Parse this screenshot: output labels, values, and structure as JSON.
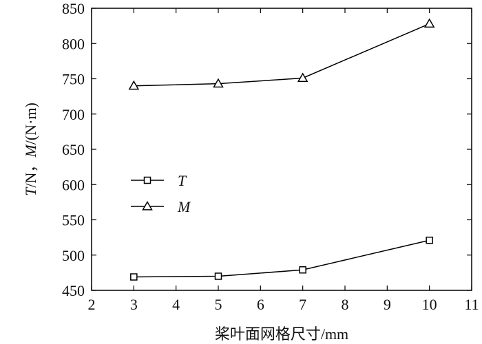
{
  "chart_data": {
    "type": "line",
    "title": "",
    "xlabel": "桨叶面网格尺寸/mm",
    "ylabel_parts": {
      "t": "T",
      "mid": "/N，",
      "m": "M",
      "end": "/(N·m)"
    },
    "xlim": [
      2,
      11
    ],
    "ylim": [
      450,
      850
    ],
    "xticks": [
      2,
      3,
      4,
      5,
      6,
      7,
      8,
      9,
      10,
      11
    ],
    "yticks": [
      450,
      500,
      550,
      600,
      650,
      700,
      750,
      800,
      850
    ],
    "x": [
      3,
      5,
      7,
      10
    ],
    "series": [
      {
        "name": "T",
        "marker": "square",
        "values": [
          469,
          470,
          479,
          521
        ]
      },
      {
        "name": "M",
        "marker": "triangle",
        "values": [
          740,
          743,
          751,
          828
        ]
      }
    ],
    "legend_position": "middle-left",
    "grid": false,
    "line_color": "#000000"
  }
}
